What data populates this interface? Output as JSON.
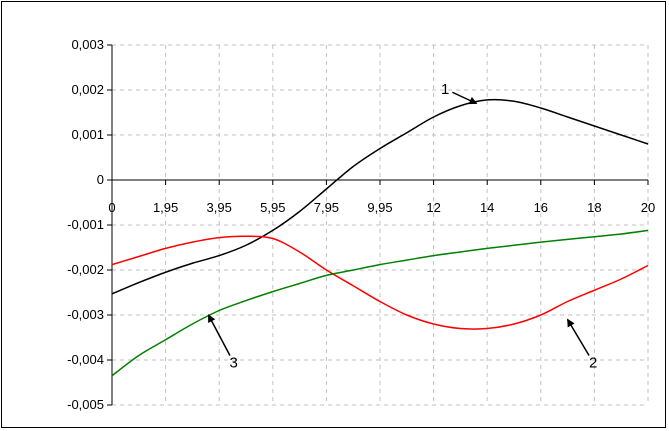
{
  "chart_data": {
    "type": "line",
    "title": "",
    "xlabel": "",
    "ylabel": "",
    "x_categories": [
      "0",
      "1,95",
      "3,95",
      "5,95",
      "7,95",
      "9,95",
      "12",
      "14",
      "16",
      "18",
      "20"
    ],
    "x_tick_values": [
      0,
      2,
      4,
      6,
      8,
      10,
      12,
      14,
      16,
      18,
      20
    ],
    "y_ticks": [
      "0,003",
      "0,002",
      "0,001",
      "0",
      "-0,001",
      "-0,002",
      "-0,003",
      "-0,004",
      "-0,005"
    ],
    "y_tick_values": [
      0.003,
      0.002,
      0.001,
      0,
      -0.001,
      -0.002,
      -0.003,
      -0.004,
      -0.005
    ],
    "ylim": [
      -0.005,
      0.003
    ],
    "xlim": [
      0,
      20
    ],
    "grid": "dashed vertical and horizontal",
    "series": [
      {
        "label": "1",
        "color": "#000000",
        "x": [
          0,
          1,
          2,
          3,
          4,
          5,
          6,
          7,
          8,
          9,
          10,
          11,
          12,
          13,
          14,
          15,
          16,
          17,
          18,
          19,
          20
        ],
        "y": [
          -0.00253,
          -0.00228,
          -0.00205,
          -0.00185,
          -0.00168,
          -0.00145,
          -0.00112,
          -0.0007,
          -0.0002,
          0.0003,
          0.0007,
          0.00105,
          0.0014,
          0.00165,
          0.00178,
          0.00175,
          0.0016,
          0.0014,
          0.0012,
          0.001,
          0.0008
        ],
        "arrow_from": [
          12.7,
          0.00195
        ],
        "arrow_to": [
          13.6,
          0.0017
        ]
      },
      {
        "label": "2",
        "color": "#ff0000",
        "x": [
          0,
          1,
          2,
          3,
          4,
          5,
          6,
          7,
          8,
          9,
          10,
          11,
          12,
          13,
          14,
          15,
          16,
          17,
          18,
          19,
          20
        ],
        "y": [
          -0.00188,
          -0.0017,
          -0.00152,
          -0.00138,
          -0.00128,
          -0.00125,
          -0.0013,
          -0.0016,
          -0.002,
          -0.00235,
          -0.0027,
          -0.003,
          -0.0032,
          -0.0033,
          -0.0033,
          -0.0032,
          -0.003,
          -0.0027,
          -0.00245,
          -0.0022,
          -0.0019
        ],
        "arrow_from": [
          17.8,
          -0.0039
        ],
        "arrow_to": [
          17.0,
          -0.0031
        ]
      },
      {
        "label": "3",
        "color": "#008000",
        "x": [
          0,
          1,
          2,
          3,
          4,
          5,
          6,
          7,
          8,
          9,
          10,
          11,
          12,
          13,
          14,
          15,
          16,
          17,
          18,
          19,
          20
        ],
        "y": [
          -0.00435,
          -0.0039,
          -0.00355,
          -0.0032,
          -0.0029,
          -0.00268,
          -0.00248,
          -0.0023,
          -0.00212,
          -0.002,
          -0.00188,
          -0.00178,
          -0.00168,
          -0.0016,
          -0.00152,
          -0.00145,
          -0.00138,
          -0.00132,
          -0.00126,
          -0.0012,
          -0.00112
        ],
        "arrow_from": [
          4.4,
          -0.0039
        ],
        "arrow_to": [
          3.6,
          -0.003
        ]
      }
    ],
    "axis_color": "#000000",
    "grid_color": "#c0c0c0"
  }
}
